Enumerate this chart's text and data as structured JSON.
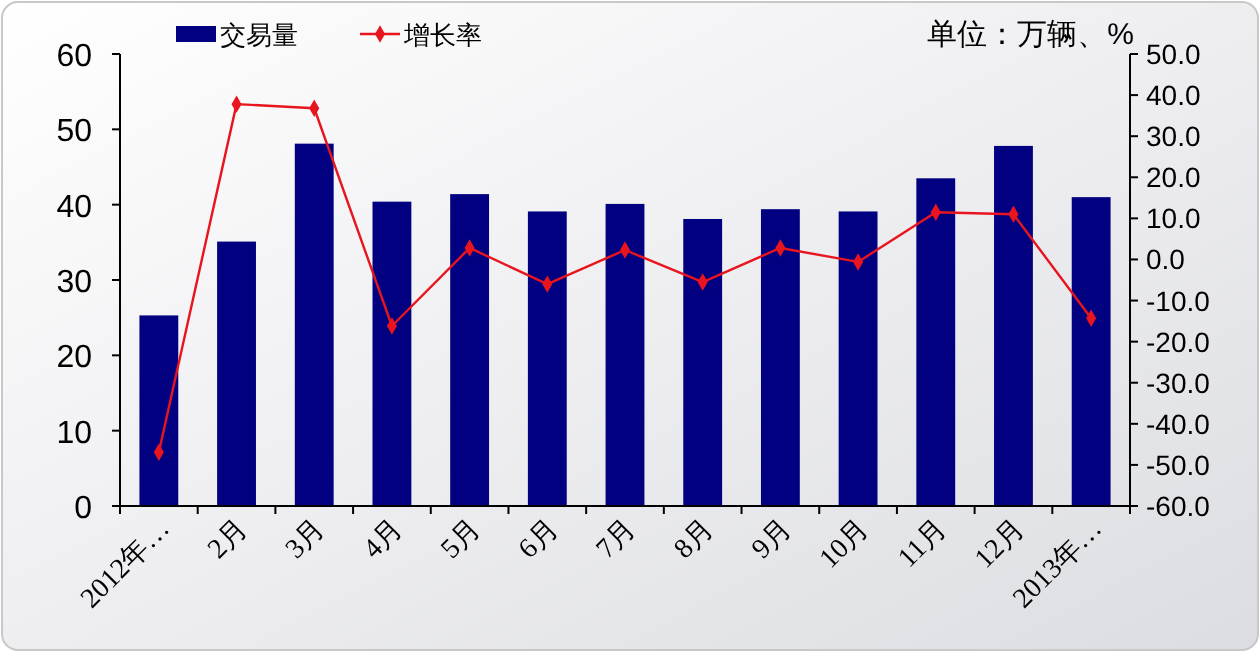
{
  "chart_data": {
    "type": "bar",
    "annotations": [
      "单位：万辆、%"
    ],
    "categories": [
      "2012年…",
      "2月",
      "3月",
      "4月",
      "5月",
      "6月",
      "7月",
      "8月",
      "9月",
      "10月",
      "11月",
      "12月",
      "2013年…"
    ],
    "series": [
      {
        "name": "交易量",
        "color": "#000080",
        "values": [
          25.3,
          35.1,
          48.1,
          40.4,
          41.4,
          39.1,
          40.1,
          38.1,
          39.4,
          39.1,
          43.5,
          47.8,
          41.0
        ]
      },
      {
        "name": "增长率",
        "type": "line",
        "axis": "y2",
        "color": "#e8141e",
        "marker": "diamond",
        "values": [
          -46.9,
          37.8,
          36.8,
          -16.2,
          2.8,
          -6.0,
          2.3,
          -5.5,
          2.8,
          -0.6,
          11.5,
          11.0,
          -14.3
        ]
      }
    ],
    "ylim": [
      0,
      60
    ],
    "yticks": [
      0,
      10,
      20,
      30,
      40,
      50,
      60
    ],
    "y2lim": [
      -60,
      50
    ],
    "y2ticks": [
      {
        "value": -60,
        "label": "-60.0"
      },
      {
        "value": -50,
        "label": "-50.0"
      },
      {
        "value": -40,
        "label": "-40.0"
      },
      {
        "value": -30,
        "label": "-30.0"
      },
      {
        "value": -20,
        "label": "-20.0"
      },
      {
        "value": -10,
        "label": "-10.0"
      },
      {
        "value": 0,
        "label": "0.0"
      },
      {
        "value": 10,
        "label": "10.0"
      },
      {
        "value": 20,
        "label": "20.0"
      },
      {
        "value": 30,
        "label": "30.0"
      },
      {
        "value": 40,
        "label": "40.0"
      },
      {
        "value": 50,
        "label": "50.0"
      }
    ],
    "legend": "top left",
    "grid": false
  }
}
